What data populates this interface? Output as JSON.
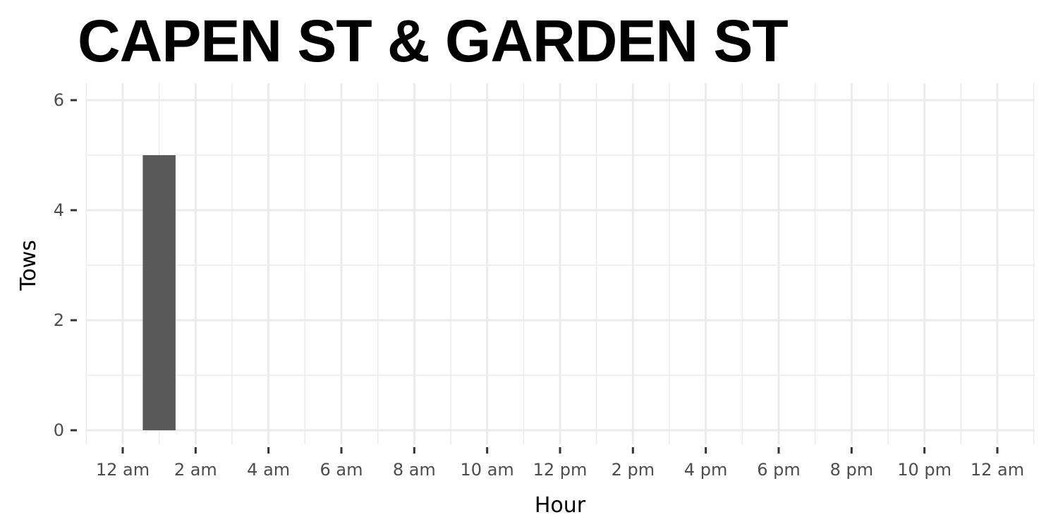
{
  "chart_data": {
    "type": "bar",
    "title": "CAPEN ST & GARDEN ST",
    "xlabel": "Hour",
    "ylabel": "Tows",
    "x_unit": "hour of day",
    "x_tick_values": [
      0,
      2,
      4,
      6,
      8,
      10,
      12,
      14,
      16,
      18,
      20,
      22,
      24
    ],
    "x_tick_labels": [
      "12 am",
      "2 am",
      "4 am",
      "6 am",
      "8 am",
      "10 am",
      "12 pm",
      "2 pm",
      "4 pm",
      "6 pm",
      "8 pm",
      "10 pm",
      "12 am"
    ],
    "xlim": [
      -1,
      25
    ],
    "y_ticks": [
      0,
      2,
      4,
      6
    ],
    "ylim": [
      0,
      6.4
    ],
    "bars": [
      {
        "x": 1,
        "value": 5
      }
    ],
    "bar_color": "#595959",
    "grid": true,
    "legend": "none"
  }
}
